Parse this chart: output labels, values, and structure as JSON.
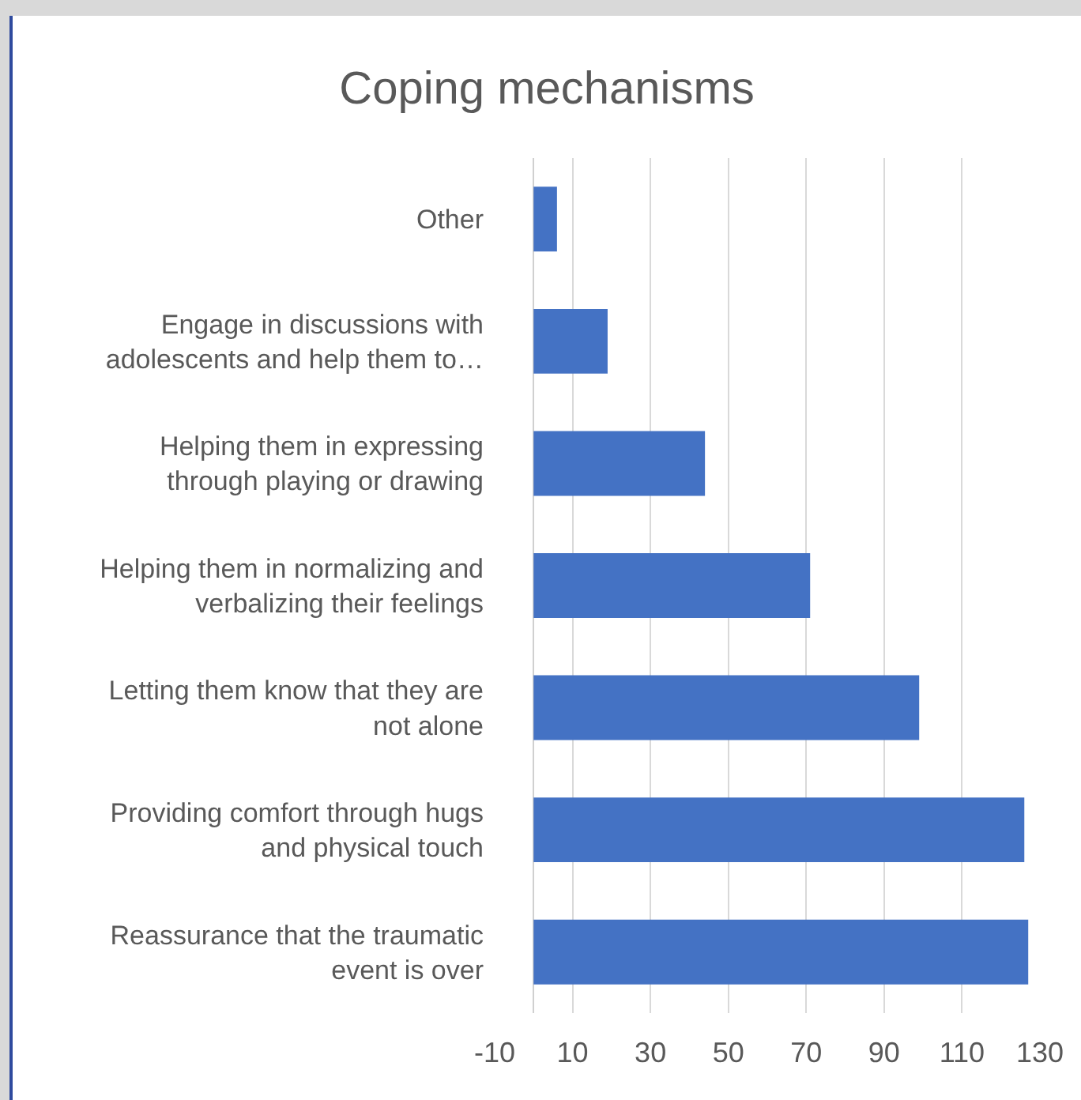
{
  "chart_data": {
    "type": "bar",
    "title": "Coping mechanisms",
    "orientation": "horizontal",
    "categories": [
      "Other",
      "Engage in discussions with adolescents and help them to…",
      "Helping them in expressing through playing or drawing",
      "Helping them in normalizing and verbalizing their feelings",
      "Letting them know that they are not alone",
      "Providing comfort through hugs and physical touch",
      "Reassurance that the traumatic event is over"
    ],
    "values": [
      6,
      19,
      44,
      71,
      99,
      126,
      127
    ],
    "color": "#4472c4",
    "xlim": [
      -10,
      130
    ],
    "xticks": [
      -10,
      10,
      30,
      50,
      70,
      90,
      110,
      130
    ],
    "grid": "x"
  }
}
